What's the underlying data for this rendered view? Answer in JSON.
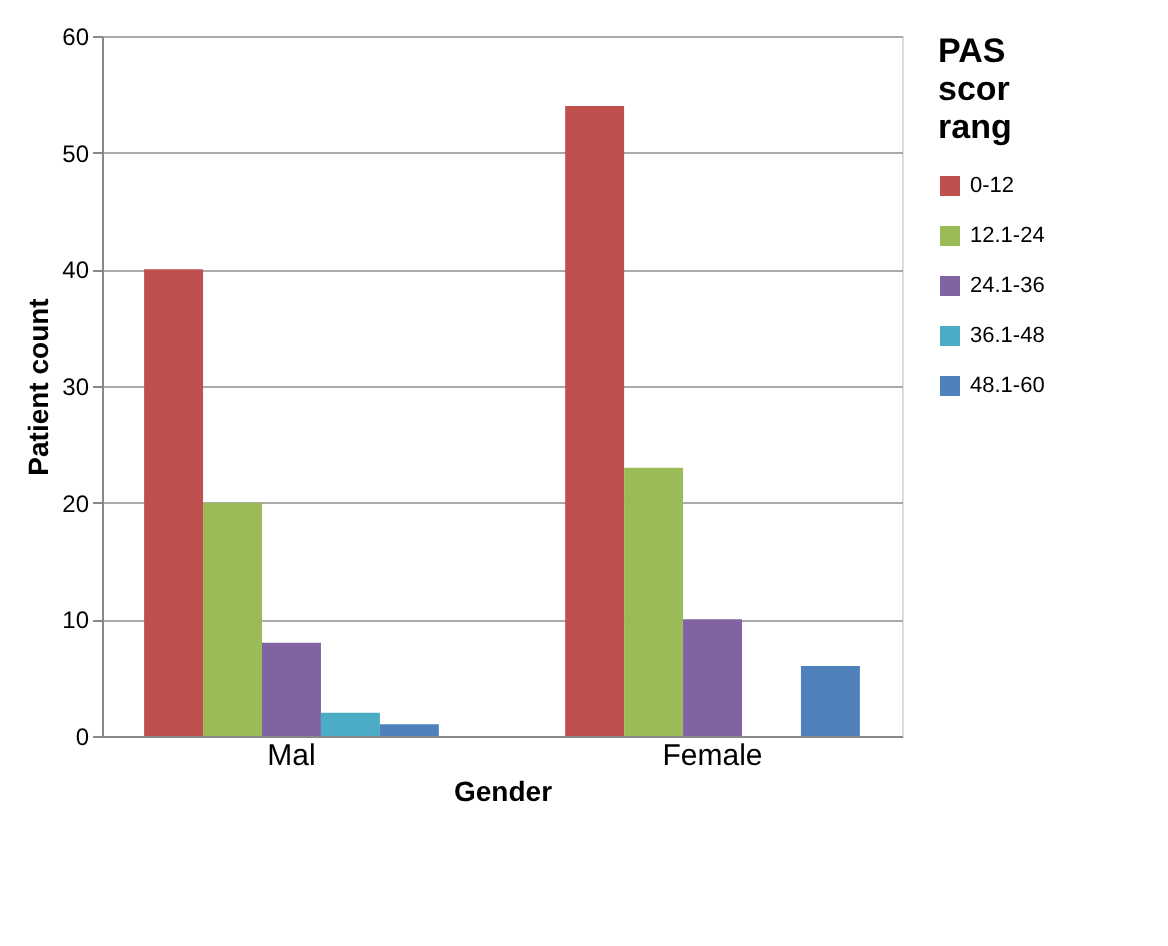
{
  "chart_data": {
    "type": "bar",
    "xlabel": "Gender",
    "ylabel": "Patient count",
    "legend_title": "PAS scor rang",
    "categories": [
      "Mal",
      "Female"
    ],
    "series": [
      {
        "name": "0-12",
        "color": "#c0504d",
        "values": [
          40,
          54
        ]
      },
      {
        "name": "12.1-24",
        "color": "#9bbb59",
        "values": [
          20,
          23
        ]
      },
      {
        "name": "24.1-36",
        "color": "#8064a2",
        "values": [
          8,
          10
        ]
      },
      {
        "name": "36.1-48",
        "color": "#4bacc6",
        "values": [
          2,
          null
        ]
      },
      {
        "name": "48.1-60",
        "color": "#4f81bd",
        "values": [
          1,
          6
        ]
      }
    ],
    "ylim": [
      0,
      60
    ],
    "yticks": [
      0,
      10,
      20,
      30,
      40,
      50,
      60
    ],
    "grid": "y",
    "legend": "right"
  }
}
